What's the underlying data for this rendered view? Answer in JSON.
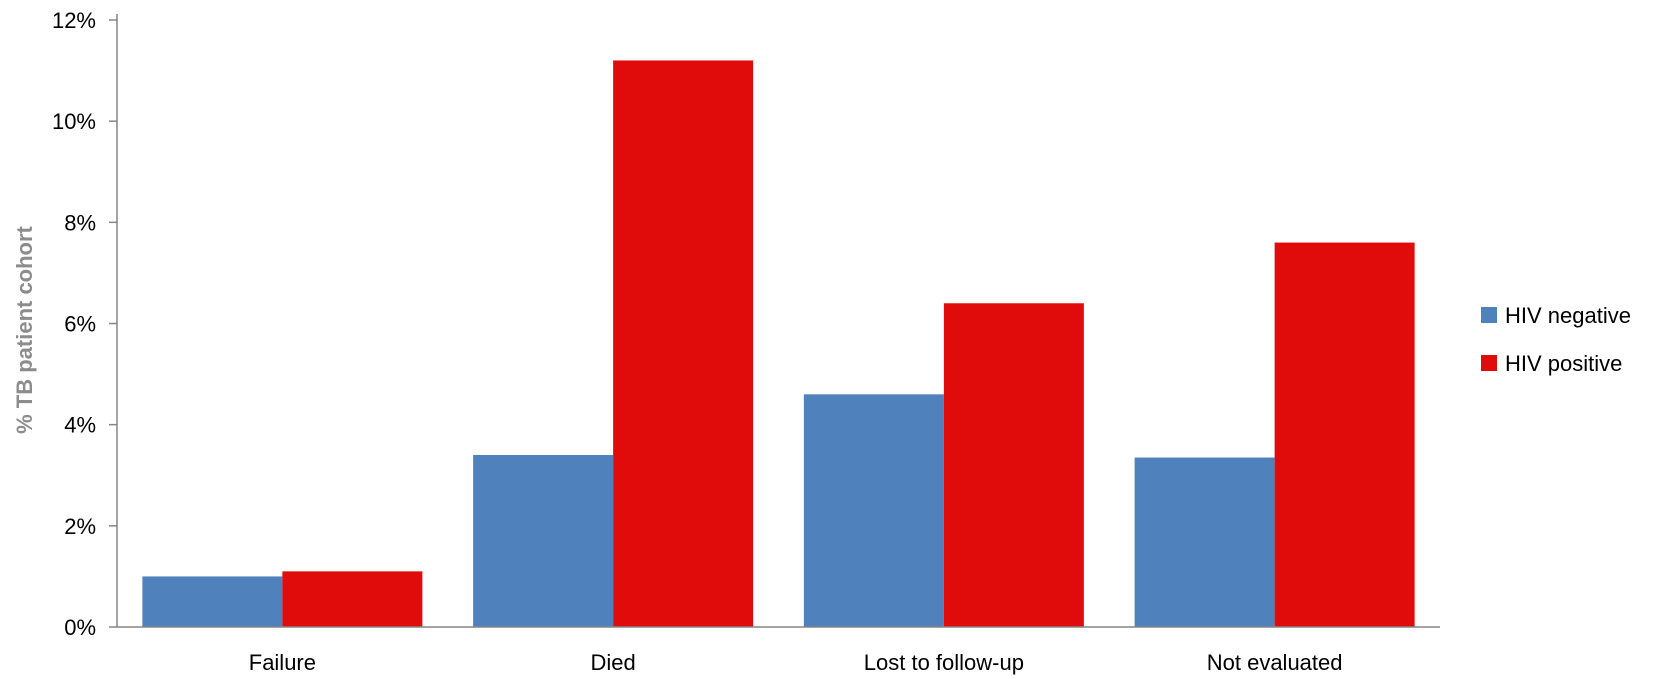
{
  "chart_data": {
    "type": "bar",
    "categories": [
      "Failure",
      "Died",
      "Lost to follow-up",
      "Not evaluated"
    ],
    "series": [
      {
        "name": "HIV negative",
        "color": "#4f81bd",
        "values": [
          1.0,
          3.4,
          4.6,
          3.35
        ]
      },
      {
        "name": "HIV positive",
        "color": "#e00b0b",
        "values": [
          1.1,
          11.2,
          6.4,
          7.6
        ]
      }
    ],
    "title": "",
    "xlabel": "",
    "ylabel": "% TB patient cohort",
    "ylim": [
      0,
      12
    ],
    "yticks": [
      0,
      2,
      4,
      6,
      8,
      10,
      12
    ],
    "ytick_labels": [
      "0%",
      "2%",
      "4%",
      "6%",
      "8%",
      "10%",
      "12%"
    ],
    "grid": false,
    "legend_position": "right"
  }
}
